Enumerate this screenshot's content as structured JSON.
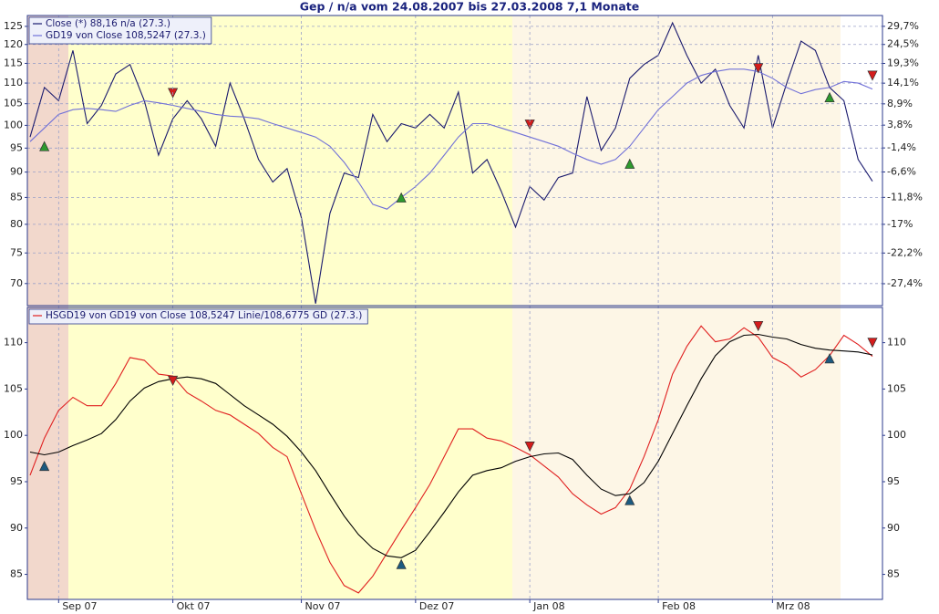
{
  "chart_data": [
    {
      "type": "line",
      "title": "Gep / n/a vom 24.08.2007 bis 27.03.2008 7,1 Monate",
      "ylog": true,
      "ylim": [
        66.6,
        128.1
      ],
      "yticks": [
        70,
        75,
        80,
        85,
        90,
        95,
        100,
        105,
        110,
        115,
        120,
        125
      ],
      "y2log": true,
      "y2lim": [
        -30.9,
        32.9
      ],
      "y2ticks": [
        {
          "value": 29.7,
          "label": "29,7%"
        },
        {
          "value": 24.5,
          "label": "24,5%"
        },
        {
          "value": 19.3,
          "label": "19,3%"
        },
        {
          "value": 14.1,
          "label": "14,1%"
        },
        {
          "value": 8.9,
          "label": "8,9%"
        },
        {
          "value": 3.8,
          "label": "3,8%"
        },
        {
          "value": -1.4,
          "label": "-1,4%"
        },
        {
          "value": -6.6,
          "label": "-6,6%"
        },
        {
          "value": -11.8,
          "label": "-11,8%"
        },
        {
          "value": -17,
          "label": "-17%"
        },
        {
          "value": -22.2,
          "label": "-22,2%"
        },
        {
          "value": -27.4,
          "label": "-27,4%"
        }
      ],
      "grid": true,
      "legend": "upper left",
      "series": [
        {
          "name": "Close (*) 88,16 n/a (27.3.)",
          "color": "#1a1a6e",
          "values": [
            97.4,
            108.9,
            105.7,
            118.4,
            100.4,
            104.6,
            112.3,
            114.7,
            105.7,
            93.5,
            101.5,
            105.7,
            101.5,
            95.4,
            110.0,
            101.5,
            92.6,
            88.0,
            90.7,
            81.2,
            66.9,
            82.0,
            89.8,
            88.9,
            102.5,
            96.4,
            100.4,
            99.4,
            102.5,
            99.4,
            107.8,
            89.8,
            92.6,
            86.2,
            79.5,
            87.1,
            84.5,
            88.9,
            89.8,
            106.7,
            94.5,
            99.4,
            111.2,
            114.7,
            117.1,
            126.0,
            117.1,
            110.0,
            113.5,
            104.6,
            99.4,
            117.1,
            99.4,
            110.0,
            120.9,
            118.4,
            108.9,
            105.7,
            92.6,
            88.16
          ]
        },
        {
          "name": "GD19 von Close 108,5247 (27.3.)",
          "color": "#7070d8",
          "values": [
            96.4,
            99.4,
            102.5,
            103.6,
            103.9,
            103.6,
            103.2,
            104.6,
            105.7,
            105.2,
            104.6,
            103.9,
            103.2,
            102.5,
            102.1,
            101.9,
            101.5,
            100.4,
            99.4,
            98.4,
            97.4,
            95.4,
            92.0,
            88.0,
            83.7,
            82.8,
            85.0,
            87.1,
            89.8,
            93.5,
            97.4,
            100.4,
            100.4,
            99.4,
            98.4,
            97.4,
            96.4,
            95.4,
            93.9,
            92.6,
            91.6,
            92.6,
            95.4,
            99.4,
            103.6,
            106.7,
            110.0,
            111.9,
            112.9,
            113.5,
            113.5,
            112.9,
            111.2,
            108.9,
            107.4,
            108.4,
            108.9,
            110.4,
            110.0,
            108.5247
          ]
        },
        {
          "color": "#2e9a2e",
          "marker": "triangle-up",
          "values": [
            null,
            95.2,
            null,
            null,
            null,
            null,
            null,
            null,
            null,
            null,
            null,
            null,
            null,
            null,
            null,
            null,
            null,
            null,
            null,
            null,
            null,
            null,
            null,
            null,
            null,
            null,
            84.8,
            null,
            null,
            null,
            null,
            null,
            null,
            null,
            null,
            null,
            null,
            null,
            null,
            null,
            null,
            null,
            91.5,
            null,
            null,
            null,
            null,
            null,
            null,
            null,
            null,
            null,
            null,
            null,
            null,
            null,
            106.3,
            null,
            null,
            null
          ]
        },
        {
          "color": "#d41c1c",
          "marker": "triangle-down",
          "values": [
            null,
            null,
            null,
            null,
            null,
            null,
            null,
            null,
            null,
            null,
            107.8,
            null,
            null,
            null,
            null,
            null,
            null,
            null,
            null,
            null,
            null,
            null,
            null,
            null,
            null,
            null,
            null,
            null,
            null,
            null,
            null,
            null,
            null,
            null,
            null,
            100.4,
            null,
            null,
            null,
            null,
            null,
            null,
            null,
            null,
            null,
            null,
            null,
            null,
            null,
            null,
            null,
            114.0,
            null,
            null,
            null,
            null,
            null,
            null,
            null,
            112.1
          ]
        }
      ]
    },
    {
      "type": "line",
      "categories": [
        null,
        null,
        "Sep 07",
        null,
        null,
        null,
        null,
        null,
        null,
        null,
        "Okt 07",
        null,
        null,
        null,
        null,
        null,
        null,
        null,
        null,
        "Nov 07",
        null,
        null,
        null,
        null,
        null,
        null,
        null,
        "Dez 07",
        null,
        null,
        null,
        null,
        null,
        null,
        null,
        "Jan 08",
        null,
        null,
        null,
        null,
        null,
        null,
        null,
        null,
        "Feb 08",
        null,
        null,
        null,
        null,
        null,
        null,
        null,
        "Mrz 08",
        null,
        null,
        null,
        null,
        null,
        null,
        null
      ],
      "ylim": [
        82.3,
        113.8
      ],
      "yticks": [
        85,
        90,
        95,
        100,
        105,
        110
      ],
      "mirror_yticks": true,
      "legend": "upper left",
      "series": [
        {
          "name": "HSGD19 von GD19 von Close 108,5247 Linie/108,6775 GD (27.3.)",
          "color": "#e02020",
          "values": [
            95.7,
            99.7,
            102.7,
            104.1,
            103.2,
            103.2,
            105.6,
            108.4,
            108.1,
            106.6,
            106.4,
            104.6,
            103.7,
            102.7,
            102.2,
            101.2,
            100.2,
            98.7,
            97.7,
            93.7,
            89.8,
            86.3,
            83.8,
            83.0,
            84.8,
            87.3,
            89.8,
            92.2,
            94.7,
            97.7,
            100.7,
            100.7,
            99.7,
            99.4,
            98.7,
            97.9,
            96.7,
            95.5,
            93.7,
            92.5,
            91.5,
            92.2,
            94.2,
            97.7,
            101.7,
            106.6,
            109.6,
            111.8,
            110.1,
            110.4,
            111.6,
            110.6,
            108.4,
            107.6,
            106.3,
            107.1,
            108.6,
            110.8,
            109.8,
            108.5247
          ]
        },
        {
          "color": "#000000",
          "values": [
            98.2,
            97.9,
            98.2,
            98.9,
            99.5,
            100.2,
            101.7,
            103.7,
            105.1,
            105.8,
            106.1,
            106.3,
            106.1,
            105.6,
            104.4,
            103.2,
            102.2,
            101.2,
            99.9,
            98.2,
            96.2,
            93.7,
            91.3,
            89.3,
            87.8,
            87.0,
            86.8,
            87.6,
            89.6,
            91.7,
            93.9,
            95.7,
            96.2,
            96.5,
            97.2,
            97.7,
            98.0,
            98.1,
            97.4,
            95.7,
            94.2,
            93.5,
            93.7,
            94.9,
            97.2,
            100.2,
            103.2,
            106.1,
            108.6,
            110.1,
            110.8,
            110.9,
            110.6,
            110.4,
            109.8,
            109.4,
            109.2,
            109.1,
            109.0,
            108.6775
          ]
        },
        {
          "color": "#1c5a80",
          "marker": "triangle-up",
          "values": [
            null,
            96.6,
            null,
            null,
            null,
            null,
            null,
            null,
            null,
            null,
            null,
            null,
            null,
            null,
            null,
            null,
            null,
            null,
            null,
            null,
            null,
            null,
            null,
            null,
            null,
            null,
            86.0,
            null,
            null,
            null,
            null,
            null,
            null,
            null,
            null,
            null,
            null,
            null,
            null,
            null,
            null,
            null,
            92.9,
            null,
            null,
            null,
            null,
            null,
            null,
            null,
            null,
            null,
            null,
            null,
            null,
            null,
            108.2,
            null,
            null,
            null
          ]
        },
        {
          "color": "#d41c1c",
          "marker": "triangle-down",
          "values": [
            null,
            null,
            null,
            null,
            null,
            null,
            null,
            null,
            null,
            null,
            106.0,
            null,
            null,
            null,
            null,
            null,
            null,
            null,
            null,
            null,
            null,
            null,
            null,
            null,
            null,
            null,
            null,
            null,
            null,
            null,
            null,
            null,
            null,
            null,
            null,
            98.9,
            null,
            null,
            null,
            null,
            null,
            null,
            null,
            null,
            null,
            null,
            null,
            null,
            null,
            null,
            null,
            111.9,
            null,
            null,
            null,
            null,
            null,
            null,
            null,
            110.1
          ]
        }
      ]
    }
  ]
}
